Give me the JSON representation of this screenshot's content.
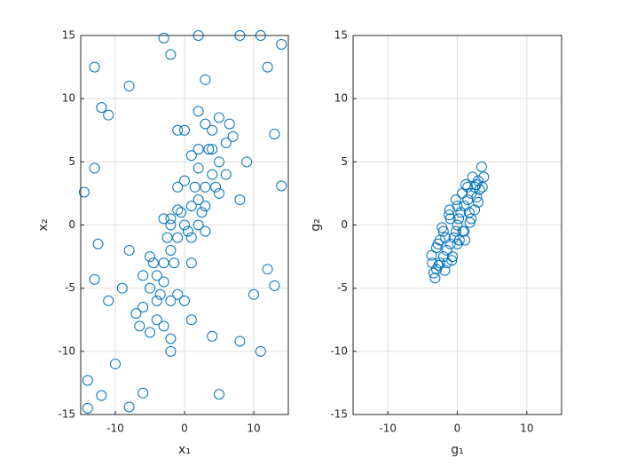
{
  "chart_data": [
    {
      "type": "scatter",
      "xlabel": "x₁",
      "ylabel": "x₂",
      "xlim": [
        -15,
        15
      ],
      "ylim": [
        -15,
        15
      ],
      "xticks": [
        -10,
        0,
        10
      ],
      "yticks": [
        -15,
        -10,
        -5,
        0,
        5,
        10,
        15
      ],
      "grid": true,
      "color": "#0072BD",
      "x": [
        -13,
        -12,
        -11,
        -13,
        -14.5,
        -12.5,
        -13,
        -14,
        -14,
        -12,
        -10,
        2,
        8,
        11,
        14,
        12,
        -3,
        3,
        13,
        14,
        11,
        8,
        5,
        4,
        10,
        13,
        -8,
        -2,
        -6,
        -2,
        -8,
        12,
        -11,
        0,
        1,
        2,
        -1,
        -2,
        3,
        4,
        5,
        -3,
        -4,
        -5,
        0.5,
        1.5,
        2.5,
        -0.5,
        -1.5,
        -2.5,
        3.5,
        4.5,
        -3.5,
        -4.5,
        6,
        -6,
        1,
        2,
        3,
        -1,
        -2,
        -3,
        0,
        4,
        -4,
        5,
        -5,
        2,
        -2,
        1,
        -1,
        3,
        -3,
        6,
        -6,
        7,
        -7,
        0,
        2,
        -2,
        4,
        -4,
        1,
        -1,
        3,
        -3,
        5,
        -5,
        0,
        8,
        -8,
        6.5,
        -6.5,
        2,
        -2,
        9,
        -9,
        1,
        -1
      ],
      "y": [
        12.5,
        9.3,
        8.7,
        4.5,
        2.6,
        -1.5,
        -4.3,
        -12.3,
        -14.5,
        -13.5,
        -11,
        15,
        15,
        15,
        14.3,
        12.5,
        14.8,
        11.5,
        7.2,
        3.1,
        -10,
        -9.2,
        -13.4,
        -8.8,
        -5.5,
        -4.8,
        11,
        13.5,
        -13.3,
        -10,
        -14.4,
        -3.5,
        -6,
        0,
        1.5,
        2,
        -1,
        -2,
        3,
        4,
        5,
        -3,
        -4,
        -5,
        -0.5,
        3,
        1,
        1,
        -3,
        -1,
        6,
        3,
        -5.5,
        -3,
        6.5,
        -6.5,
        -1,
        4.5,
        1.5,
        1.2,
        0.5,
        -4.5,
        3.5,
        6,
        -6,
        2.5,
        -2.5,
        0,
        0,
        -3,
        3,
        -0.5,
        0.5,
        4,
        -4,
        7,
        -7,
        -6,
        6,
        -6,
        7.5,
        -7.5,
        5.5,
        -5.5,
        8,
        -8,
        8.5,
        -8.5,
        7.5,
        2,
        -2,
        8,
        -8,
        9,
        -9,
        5,
        -5,
        -7.5,
        7.5
      ]
    },
    {
      "type": "scatter",
      "xlabel": "g₁",
      "ylabel": "g₂",
      "xlim": [
        -15,
        15
      ],
      "ylim": [
        -15,
        15
      ],
      "xticks": [
        -10,
        0,
        10
      ],
      "yticks": [
        -15,
        -10,
        -5,
        0,
        5,
        10,
        15
      ],
      "grid": true,
      "color": "#0072BD",
      "x": [
        3.5,
        -3.2,
        3.8,
        -3.7,
        0,
        0.5,
        1,
        1.5,
        2,
        2.5,
        3,
        -0.5,
        -1,
        -1.5,
        -2,
        -2.5,
        -3,
        0,
        1,
        -1,
        2,
        -2,
        3,
        -3,
        0.3,
        1.2,
        2.2,
        -0.8,
        -1.8,
        -2.8,
        2.8,
        1.8,
        0.8,
        -0.2,
        -1.2,
        -2.2,
        3.2,
        -3.4,
        1.5,
        -1.5,
        0,
        2.5,
        -2.5,
        0.7,
        -0.7,
        1.7,
        -1.7,
        2.7,
        -2.7,
        3.6,
        -3.6,
        0.2,
        -0.2,
        1.1,
        -1.1
      ],
      "y": [
        4.6,
        -4.2,
        3.8,
        -2.4,
        0,
        1,
        1.5,
        2,
        2.5,
        3,
        3.5,
        -1,
        -1.5,
        -2,
        -2.5,
        -3,
        -3.5,
        1.5,
        -0.5,
        0.5,
        0.5,
        -0.5,
        1.8,
        -1.8,
        -1.2,
        3.2,
        3.8,
        -2.8,
        -3.6,
        -1.5,
        2.2,
        0.2,
        -0.5,
        2,
        0.8,
        -0.2,
        2.8,
        -3.8,
        3,
        -3,
        -1.5,
        1.2,
        -1.2,
        2.5,
        -2.5,
        1,
        -1,
        3.2,
        -3.2,
        3,
        -3,
        0.5,
        -0.5,
        -1.2,
        1.2
      ]
    }
  ]
}
